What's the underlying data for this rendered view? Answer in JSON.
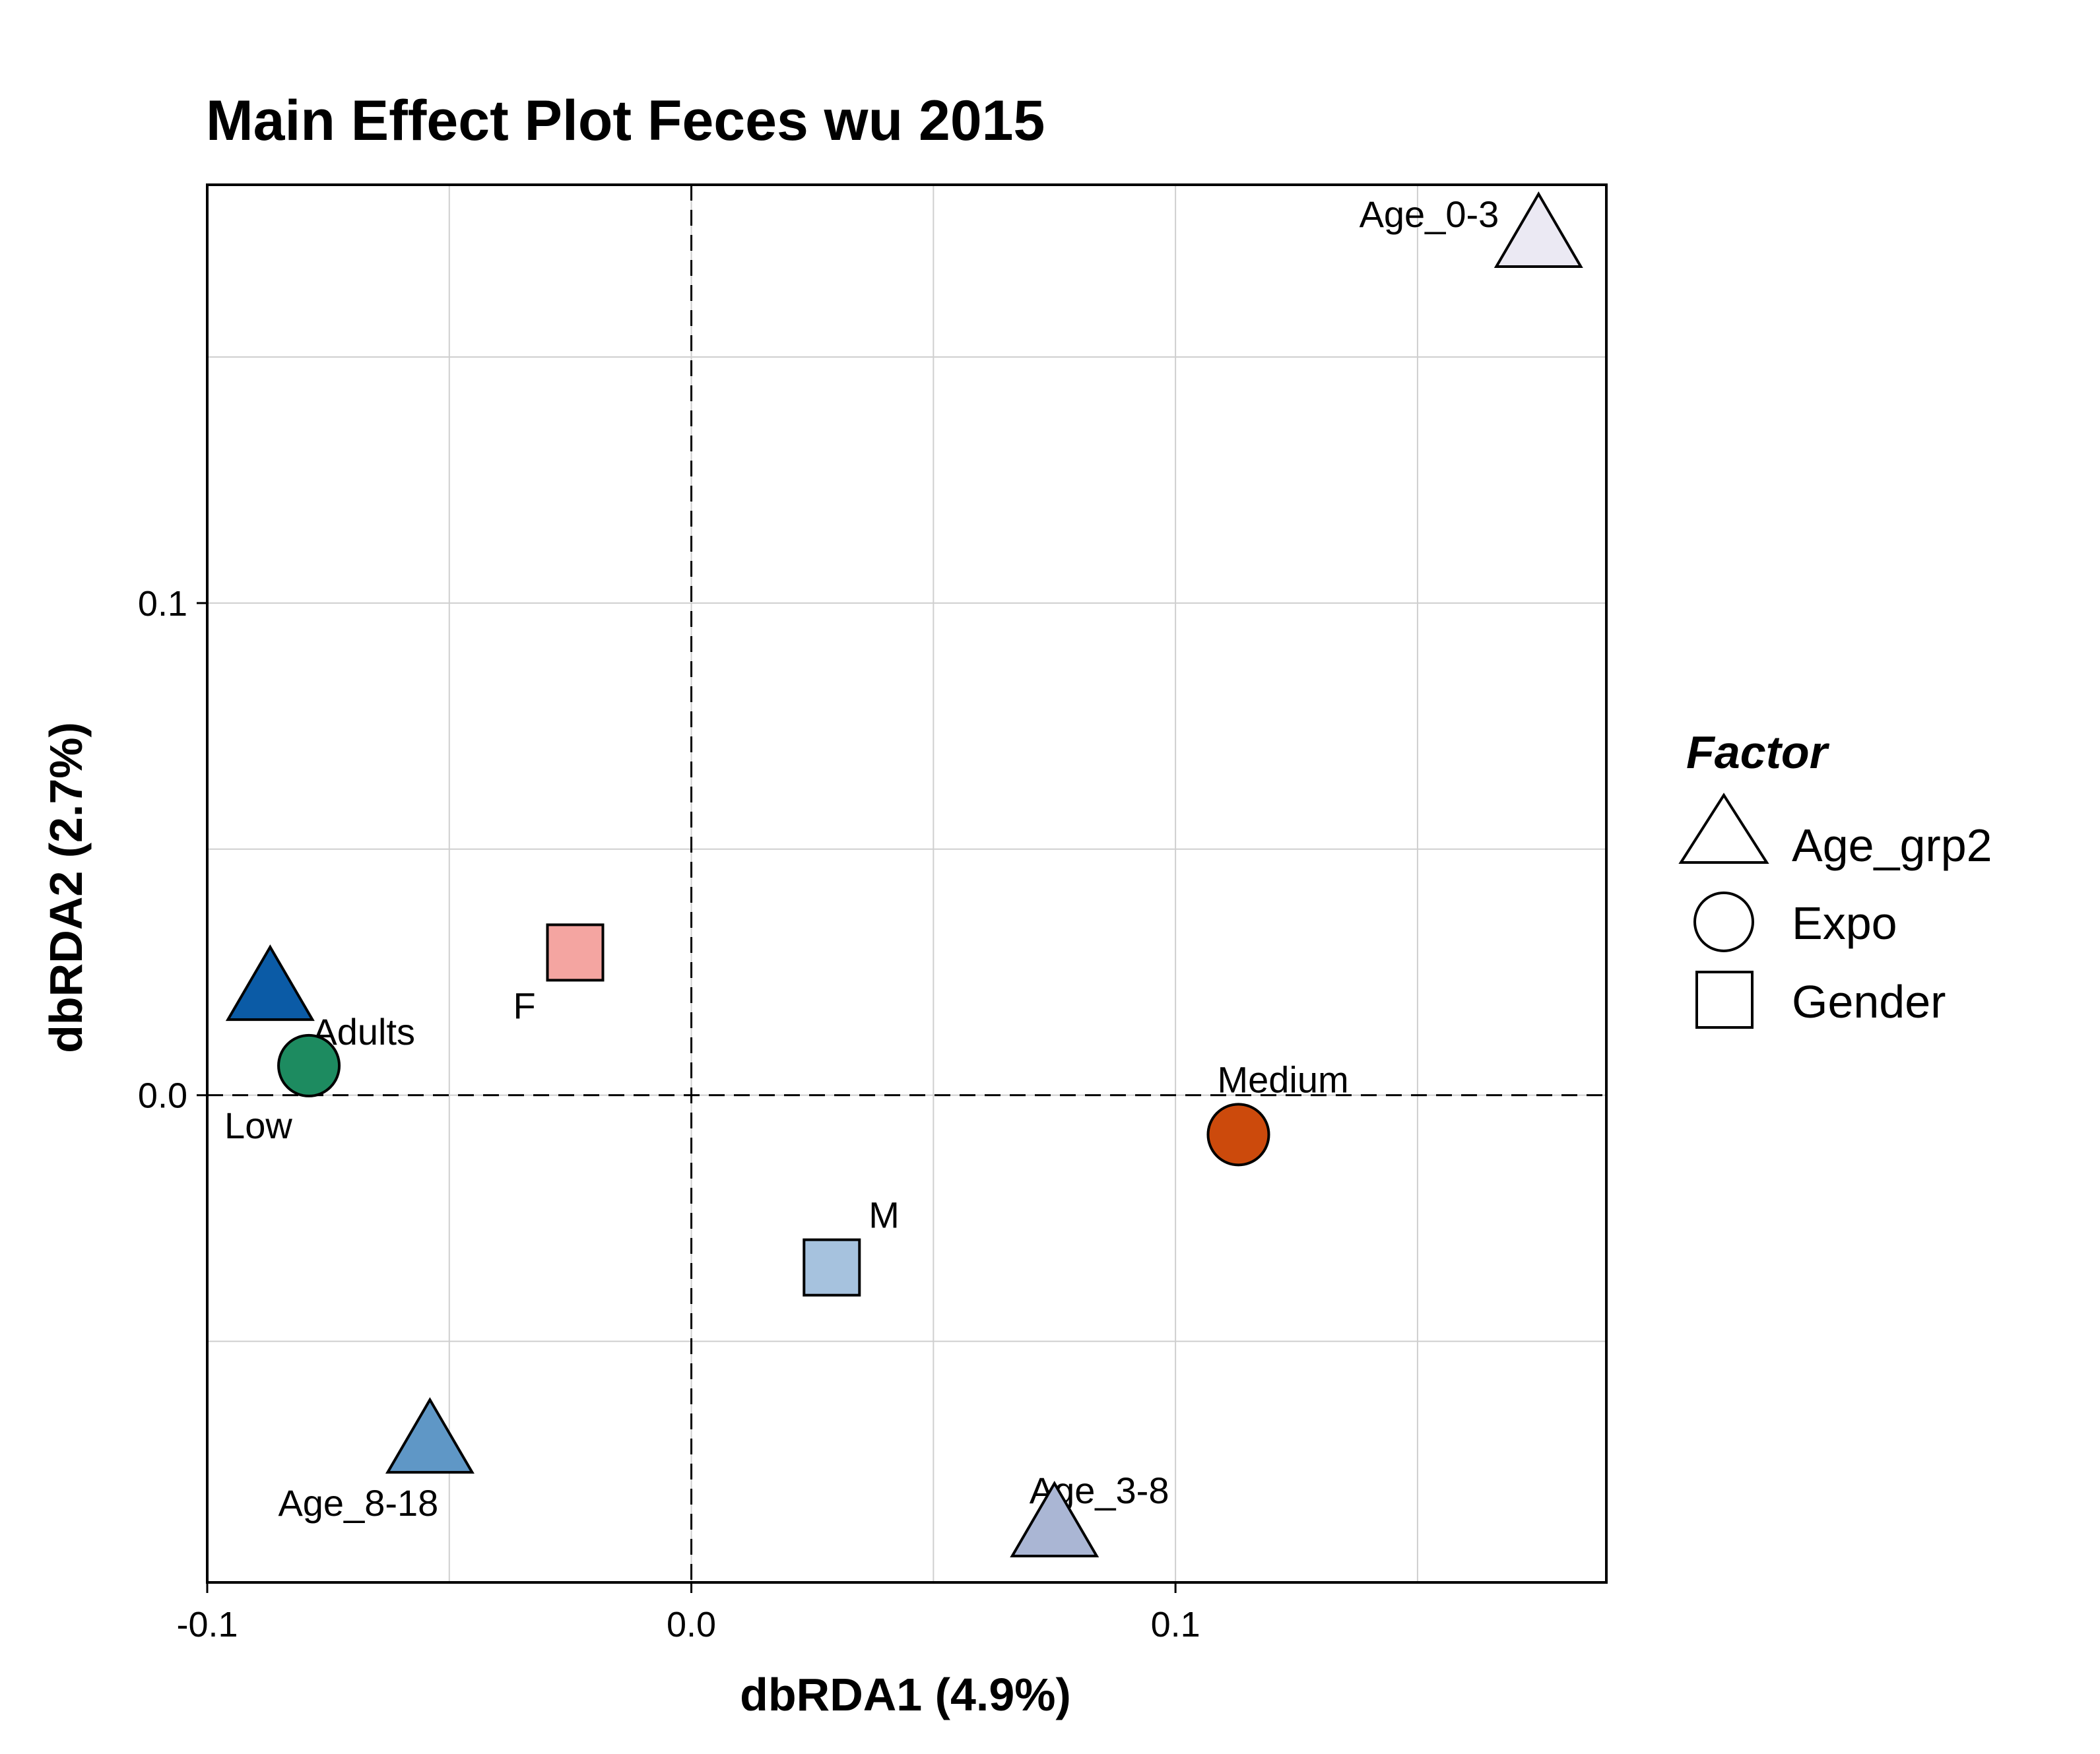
{
  "chart_data": {
    "type": "scatter",
    "title": "Main Effect Plot Feces wu 2015",
    "xlabel": "dbRDA1 (4.9%)",
    "ylabel": "dbRDA2 (2.7%)",
    "xlim": [
      -0.1,
      0.189
    ],
    "ylim": [
      -0.099,
      0.185
    ],
    "xticks": [
      -0.1,
      0.0,
      0.1
    ],
    "xtick_labels": [
      "-0.1",
      "0.0",
      "0.1"
    ],
    "yticks": [
      0.0,
      0.1
    ],
    "ytick_labels": [
      "0.0",
      "0.1"
    ],
    "grid": true,
    "zero_lines": true,
    "legend": {
      "title": "Factor",
      "placement": "right",
      "entries": [
        {
          "label": "Age_grp2",
          "shape": "triangle"
        },
        {
          "label": "Expo",
          "shape": "circle"
        },
        {
          "label": "Gender",
          "shape": "square"
        }
      ]
    },
    "points": [
      {
        "label": "Age_0-3",
        "x": 0.175,
        "y": 0.174,
        "factor": "Age_grp2",
        "shape": "triangle",
        "color": "#ebe9f3"
      },
      {
        "label": "Adults",
        "x": -0.087,
        "y": 0.021,
        "factor": "Age_grp2",
        "shape": "triangle",
        "color": "#0b5ba6"
      },
      {
        "label": "Age_8-18",
        "x": -0.054,
        "y": -0.071,
        "factor": "Age_grp2",
        "shape": "triangle",
        "color": "#5f97c6"
      },
      {
        "label": "Age_3-8",
        "x": 0.075,
        "y": -0.088,
        "factor": "Age_grp2",
        "shape": "triangle",
        "color": "#aab6d4"
      },
      {
        "label": "Low",
        "x": -0.079,
        "y": 0.006,
        "factor": "Expo",
        "shape": "circle",
        "color": "#1d8b60"
      },
      {
        "label": "Medium",
        "x": 0.113,
        "y": -0.008,
        "factor": "Expo",
        "shape": "circle",
        "color": "#cc4a0c"
      },
      {
        "label": "F",
        "x": -0.024,
        "y": 0.029,
        "factor": "Gender",
        "shape": "square",
        "color": "#f4a5a1"
      },
      {
        "label": "M",
        "x": 0.029,
        "y": -0.035,
        "factor": "Gender",
        "shape": "square",
        "color": "#a6c2de"
      }
    ]
  }
}
